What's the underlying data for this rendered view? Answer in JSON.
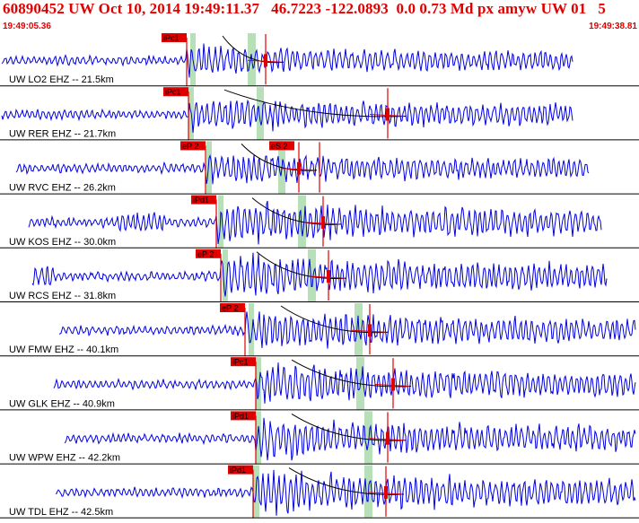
{
  "header": {
    "title": "60890452 UW Oct 10, 2014 19:49:11.37   46.7223 -122.0893  0.0 0.73 Md px amyw UW 01   5",
    "start_time": "19:49:05.36",
    "end_time": "19:49:38.81"
  },
  "colors": {
    "header_text": "#e00000",
    "trace": "#0000e0",
    "pick_line": "#e00000",
    "pick_label_bg": "#e00000",
    "pick_label_text": "#000000",
    "window_band": "#b8e0b8",
    "curve": "#000000",
    "separator": "#000000"
  },
  "traces": [
    {
      "label": "UW LO2 EHZ -- 21.5km",
      "picks": [
        "iPc1"
      ]
    },
    {
      "label": "UW RER EHZ -- 21.7km",
      "picks": [
        "iPc1"
      ]
    },
    {
      "label": "UW RVC EHZ -- 26.2km",
      "picks": [
        "eP 2",
        "eS 2"
      ]
    },
    {
      "label": "UW KOS EHZ -- 30.0km",
      "picks": [
        "iPd1"
      ]
    },
    {
      "label": "UW RCS EHZ -- 31.8km",
      "picks": [
        "eP 2"
      ]
    },
    {
      "label": "UW FMW EHZ -- 40.1km",
      "picks": [
        "eP 2"
      ]
    },
    {
      "label": "UW GLK EHZ -- 40.9km",
      "picks": [
        "iPc1"
      ]
    },
    {
      "label": "UW WPW EHZ -- 42.2km",
      "picks": [
        "iPd1"
      ]
    },
    {
      "label": "UW TDL EHZ -- 42.5km",
      "picks": [
        "iPd1"
      ]
    }
  ]
}
